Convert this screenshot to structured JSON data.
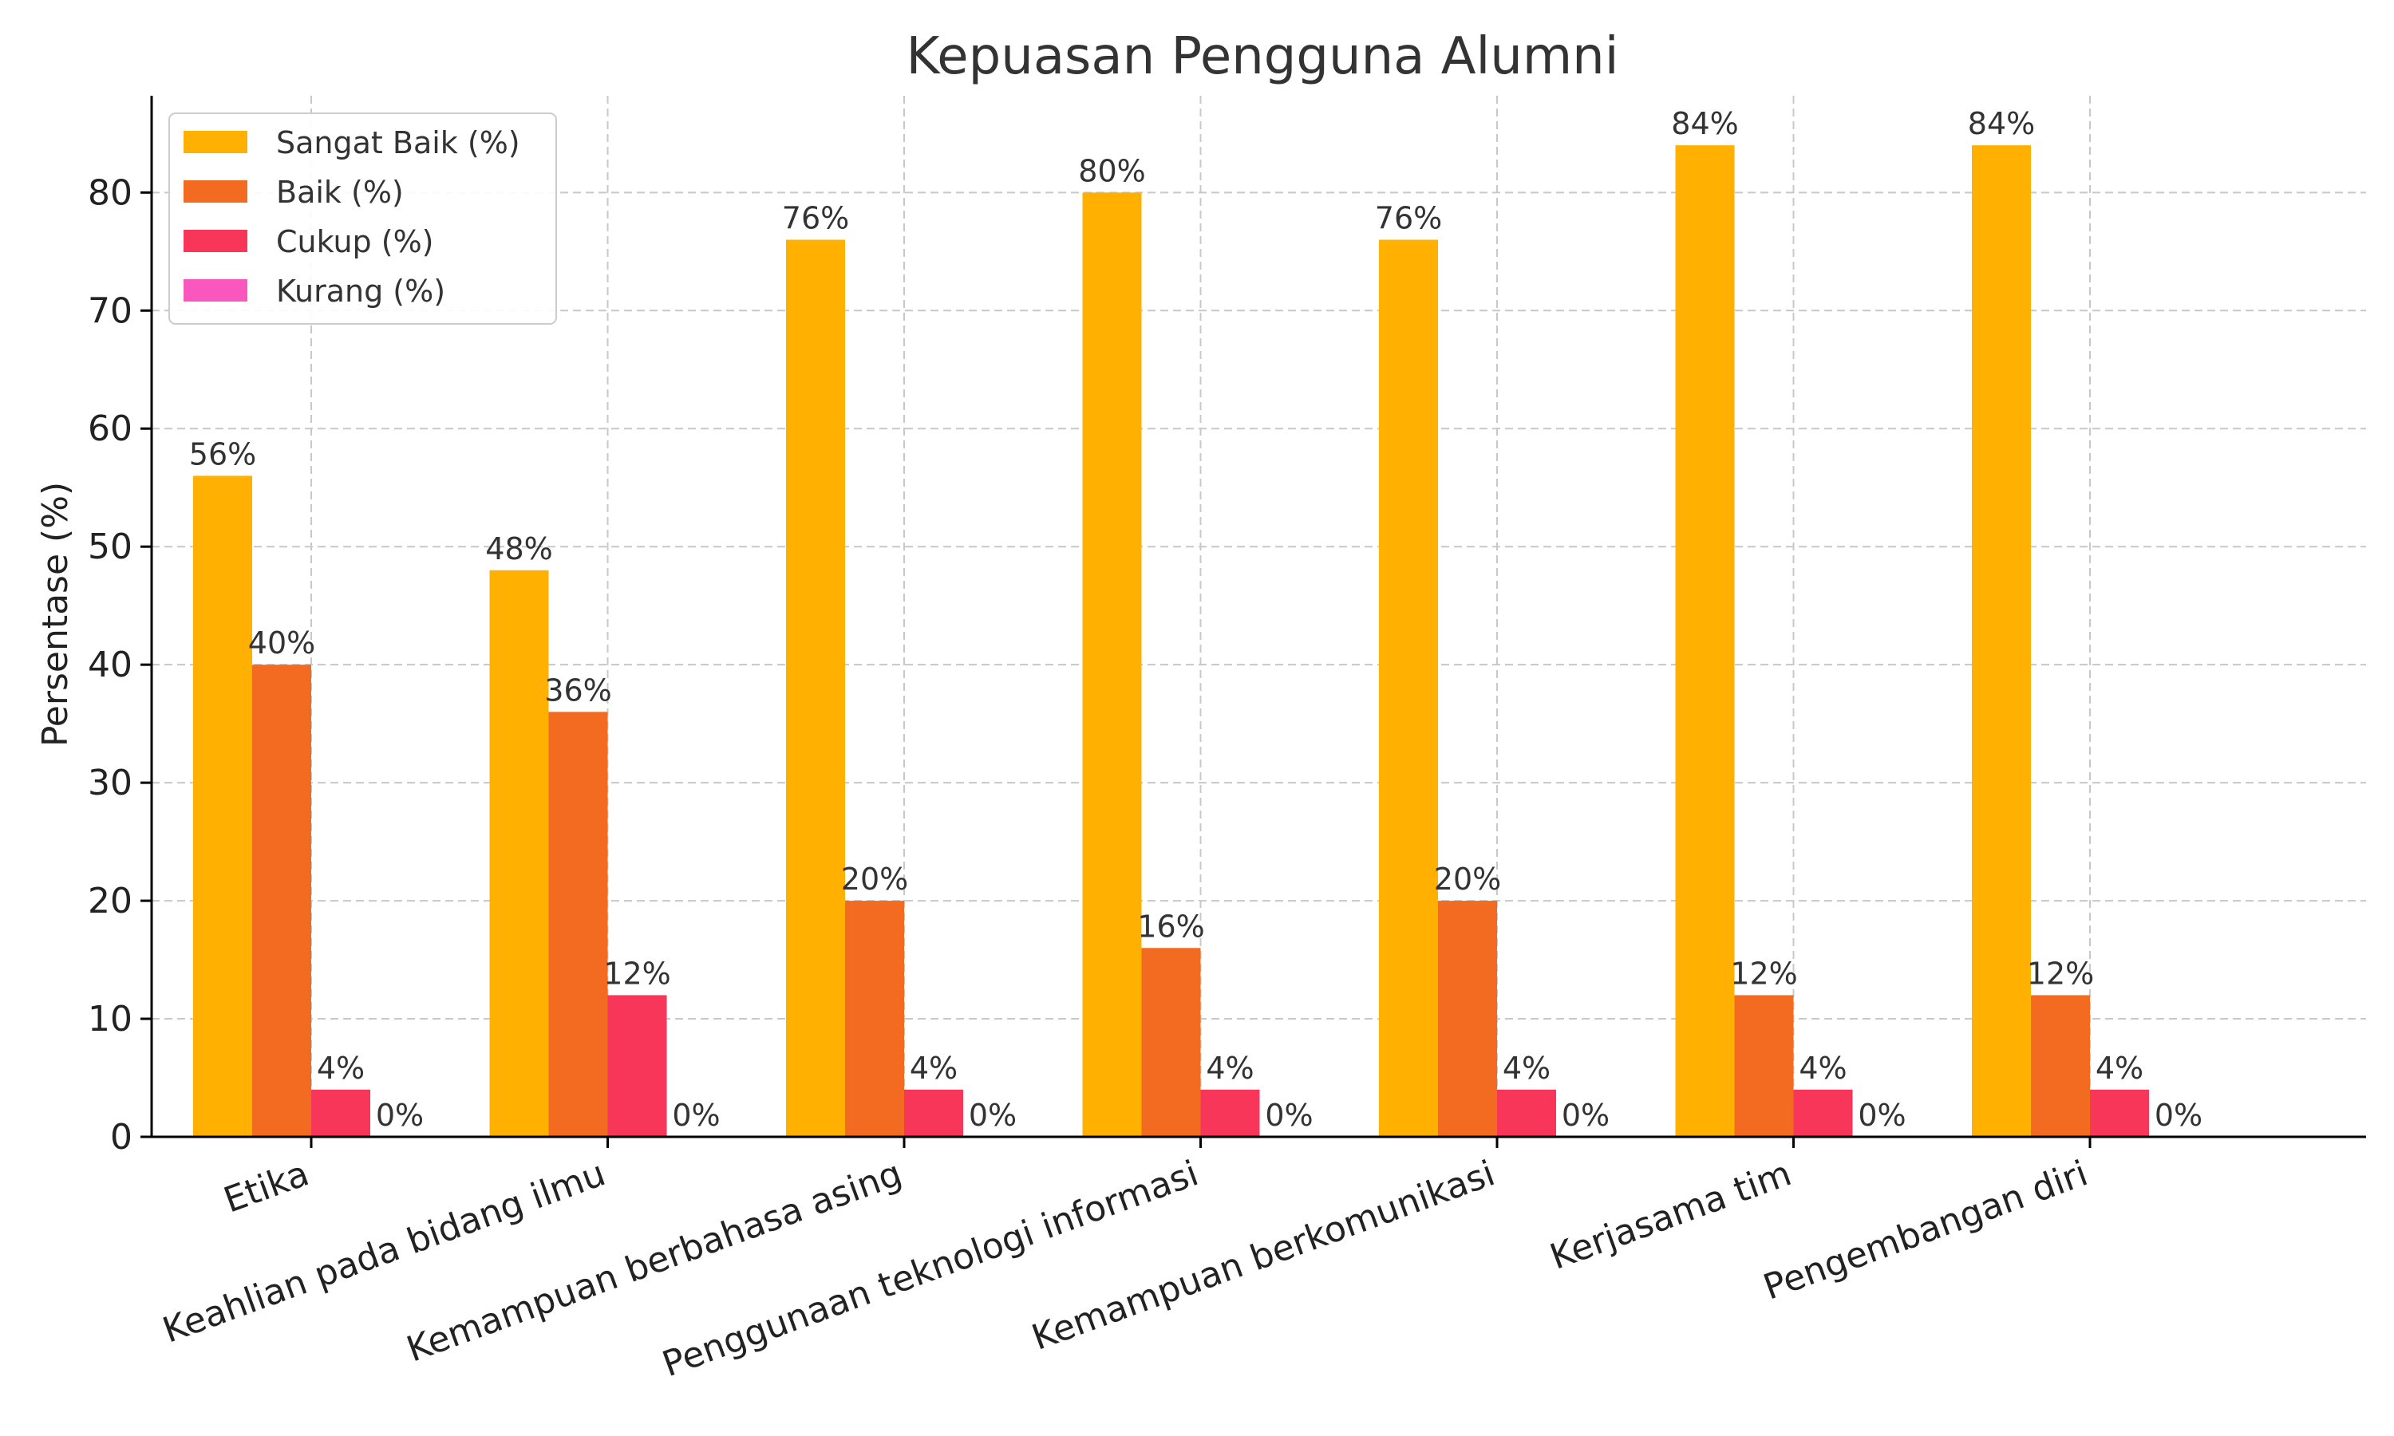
{
  "chart_data": {
    "type": "bar",
    "title": "Kepuasan Pengguna Alumni",
    "xlabel": "",
    "ylabel": "Persentase (%)",
    "ylim": [
      0,
      88.2
    ],
    "yticks": [
      0,
      10,
      20,
      30,
      40,
      50,
      60,
      70,
      80
    ],
    "grid": true,
    "legend_position": "top-left",
    "categories": [
      "Etika",
      "Keahlian pada bidang ilmu",
      "Kemampuan berbahasa asing",
      "Penggunaan teknologi informasi",
      "Kemampuan berkomunikasi",
      "Kerjasama tim",
      "Pengembangan diri"
    ],
    "series": [
      {
        "name": "Sangat Baik (%)",
        "color": "#FFB000",
        "values": [
          56,
          48,
          76,
          80,
          76,
          84,
          84
        ]
      },
      {
        "name": "Baik (%)",
        "color": "#F26B21",
        "values": [
          40,
          36,
          20,
          16,
          20,
          12,
          12
        ]
      },
      {
        "name": "Cukup (%)",
        "color": "#F7365A",
        "values": [
          4,
          12,
          4,
          4,
          4,
          4,
          4
        ]
      },
      {
        "name": "Kurang (%)",
        "color": "#F957BE",
        "values": [
          0,
          0,
          0,
          0,
          0,
          0,
          0
        ]
      }
    ],
    "value_suffix": "%"
  }
}
